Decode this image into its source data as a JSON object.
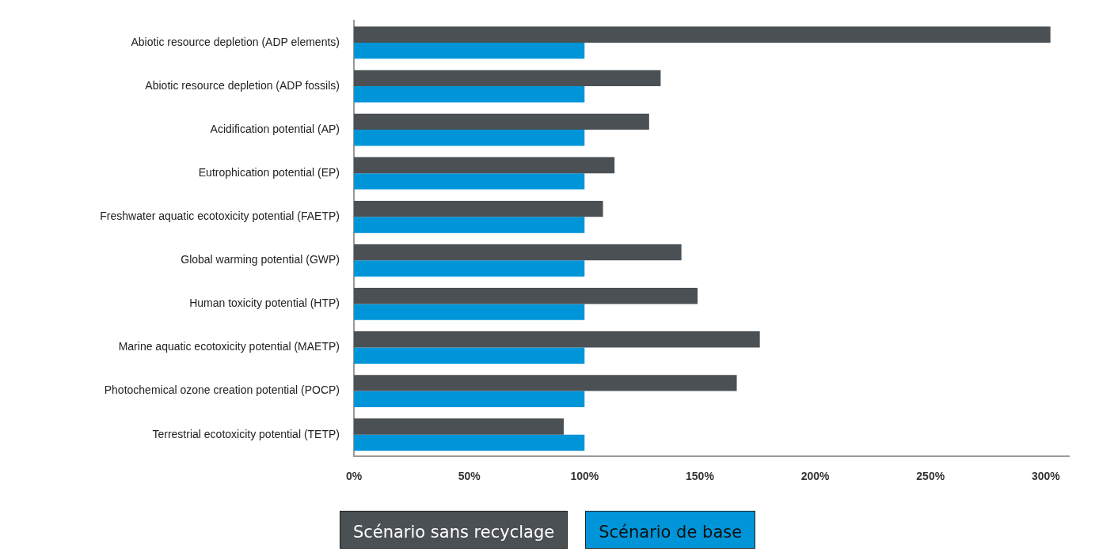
{
  "chart_data": {
    "type": "bar",
    "orientation": "horizontal",
    "categories": [
      "Abiotic resource depletion (ADP elements)",
      "Abiotic resource depletion (ADP fossils)",
      "Acidification potential (AP)",
      "Eutrophication potential (EP)",
      "Freshwater aquatic ecotoxicity potential (FAETP)",
      "Global warming potential (GWP)",
      "Human toxicity potential (HTP)",
      "Marine aquatic ecotoxicity potential (MAETP)",
      "Photochemical ozone creation potential (POCP)",
      "Terrestrial ecotoxicity potential (TETP)"
    ],
    "series": [
      {
        "name": "Scénario sans recyclage",
        "color": "#4a5054",
        "values": [
          302,
          133,
          128,
          113,
          108,
          142,
          149,
          176,
          166,
          91
        ]
      },
      {
        "name": "Scénario de base",
        "color": "#0095d8",
        "values": [
          100,
          100,
          100,
          100,
          100,
          100,
          100,
          100,
          100,
          100
        ]
      }
    ],
    "xlim": [
      0,
      310
    ],
    "xticks": [
      {
        "value": 0,
        "label": "0%"
      },
      {
        "value": 50,
        "label": "50%"
      },
      {
        "value": 100,
        "label": "100%"
      },
      {
        "value": 150,
        "label": "150%"
      },
      {
        "value": 200,
        "label": "200%"
      },
      {
        "value": 250,
        "label": "250%"
      },
      {
        "value": 300,
        "label": "300%"
      }
    ],
    "grid": false,
    "legend": "bottom"
  }
}
